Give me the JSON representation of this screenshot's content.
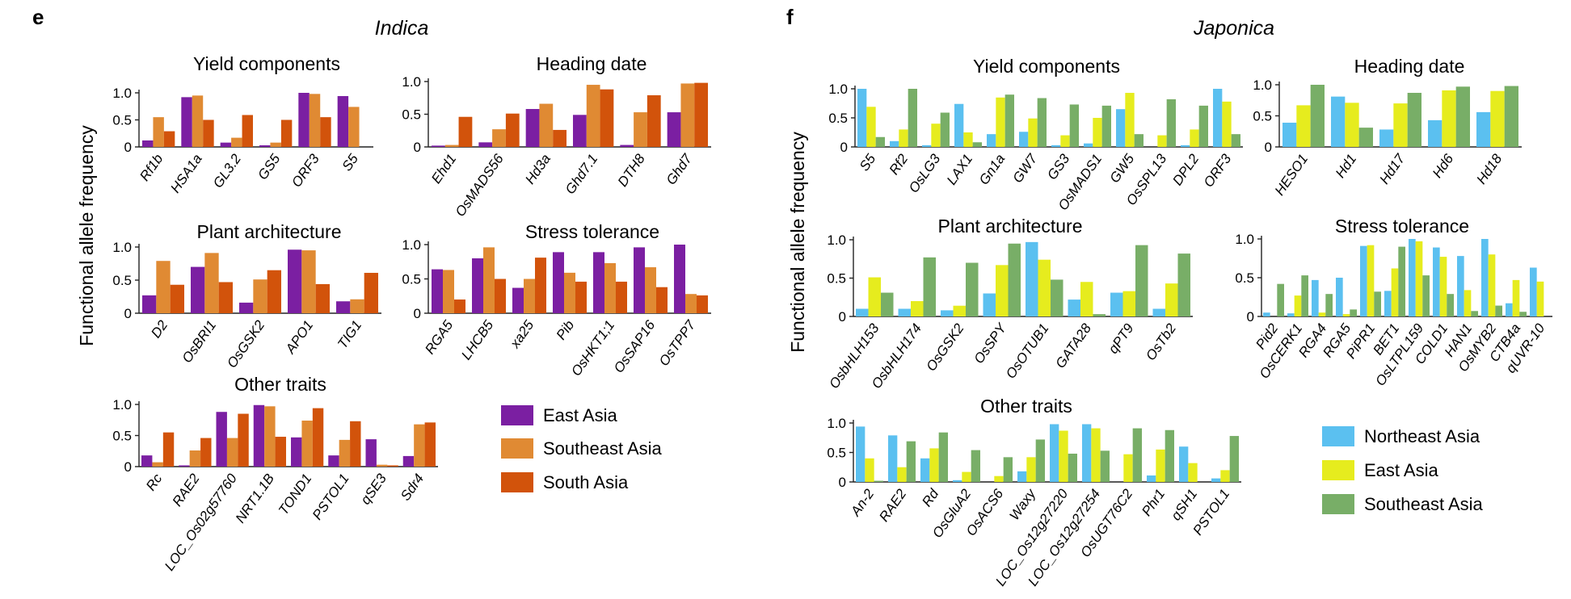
{
  "panels": [
    {
      "label": "e",
      "title": "Indica",
      "ylabel": "Functional allele frequency",
      "legend": [
        {
          "name": "East Asia",
          "color": "#7B1FA2"
        },
        {
          "name": "Southeast Asia",
          "color": "#E08A33"
        },
        {
          "name": "South Asia",
          "color": "#D2530B"
        }
      ]
    },
    {
      "label": "f",
      "title": "Japonica",
      "ylabel": "Functional allele frequency",
      "legend": [
        {
          "name": "Northeast Asia",
          "color": "#5BC0F0"
        },
        {
          "name": "East Asia",
          "color": "#E6EC1E"
        },
        {
          "name": "Southeast Asia",
          "color": "#78AE67"
        }
      ]
    }
  ],
  "chart_data": [
    {
      "panel": "e",
      "type": "bar",
      "title": "Yield components",
      "ylim": [
        0,
        1.0
      ],
      "yticks": [
        "0",
        "0.5",
        "1.0"
      ],
      "categories": [
        "Rf1b",
        "HSA1a",
        "GL3.2",
        "GS5",
        "ORF3",
        "S5"
      ],
      "series": [
        {
          "name": "East Asia",
          "values": [
            0.12,
            0.92,
            0.08,
            0.03,
            1.0,
            0.94
          ]
        },
        {
          "name": "Southeast Asia",
          "values": [
            0.55,
            0.95,
            0.17,
            0.08,
            0.98,
            0.74
          ]
        },
        {
          "name": "South Asia",
          "values": [
            0.29,
            0.5,
            0.59,
            0.5,
            0.55,
            0.0
          ]
        }
      ]
    },
    {
      "panel": "e",
      "type": "bar",
      "title": "Heading date",
      "ylim": [
        0,
        1.0
      ],
      "yticks": [
        "0",
        "0.5",
        "1.0"
      ],
      "categories": [
        "Ehd1",
        "OsMADS56",
        "Hd3a",
        "Ghd7.1",
        "DTH8",
        "Ghd7"
      ],
      "series": [
        {
          "name": "East Asia",
          "values": [
            0.02,
            0.07,
            0.58,
            0.49,
            0.03,
            0.53
          ]
        },
        {
          "name": "Southeast Asia",
          "values": [
            0.03,
            0.27,
            0.66,
            0.95,
            0.53,
            0.97
          ]
        },
        {
          "name": "South Asia",
          "values": [
            0.46,
            0.51,
            0.26,
            0.88,
            0.79,
            0.98
          ]
        }
      ]
    },
    {
      "panel": "e",
      "type": "bar",
      "title": "Plant architecture",
      "ylim": [
        0,
        1.0
      ],
      "yticks": [
        "0",
        "0.5",
        "1.0"
      ],
      "categories": [
        "D2",
        "OsBRI1",
        "OsGSK2",
        "APO1",
        "TIG1"
      ],
      "series": [
        {
          "name": "East Asia",
          "values": [
            0.27,
            0.7,
            0.16,
            0.96,
            0.18
          ]
        },
        {
          "name": "Southeast Asia",
          "values": [
            0.79,
            0.91,
            0.51,
            0.95,
            0.21
          ]
        },
        {
          "name": "South Asia",
          "values": [
            0.43,
            0.47,
            0.65,
            0.44,
            0.61
          ]
        }
      ]
    },
    {
      "panel": "e",
      "type": "bar",
      "title": "Stress tolerance",
      "ylim": [
        0,
        1.0
      ],
      "yticks": [
        "0",
        "0.5",
        "1.0"
      ],
      "categories": [
        "RGA5",
        "LHCB5",
        "xa25",
        "Pib",
        "OsHKT1;1",
        "OsSAP16",
        "OsTPP7"
      ],
      "series": [
        {
          "name": "East Asia",
          "values": [
            0.64,
            0.8,
            0.37,
            0.89,
            0.89,
            0.96,
            1.0
          ]
        },
        {
          "name": "Southeast Asia",
          "values": [
            0.63,
            0.96,
            0.5,
            0.59,
            0.73,
            0.67,
            0.28
          ]
        },
        {
          "name": "South Asia",
          "values": [
            0.2,
            0.5,
            0.81,
            0.46,
            0.46,
            0.38,
            0.26
          ]
        }
      ]
    },
    {
      "panel": "e",
      "type": "bar",
      "title": "Other traits",
      "ylim": [
        0,
        1.0
      ],
      "yticks": [
        "0",
        "0.5",
        "1.0"
      ],
      "categories": [
        "Rc",
        "RAE2",
        "LOC_Os02g57760",
        "NRT1.1B",
        "TOND1",
        "PSTOL1",
        "qSE3",
        "Sdr4"
      ],
      "series": [
        {
          "name": "East Asia",
          "values": [
            0.18,
            0.02,
            0.88,
            0.99,
            0.47,
            0.18,
            0.44,
            0.17
          ]
        },
        {
          "name": "Southeast Asia",
          "values": [
            0.07,
            0.26,
            0.46,
            0.97,
            0.74,
            0.43,
            0.03,
            0.68
          ]
        },
        {
          "name": "South Asia",
          "values": [
            0.55,
            0.46,
            0.85,
            0.48,
            0.94,
            0.73,
            0.02,
            0.71
          ]
        }
      ]
    },
    {
      "panel": "f",
      "type": "bar",
      "title": "Yield components",
      "ylim": [
        0,
        1.0
      ],
      "yticks": [
        "0",
        "0.5",
        "1.0"
      ],
      "categories": [
        "S5",
        "Rf2",
        "OsLG3",
        "LAX1",
        "Gn1a",
        "GW7",
        "GS3",
        "OsMADS1",
        "GW5",
        "OsSPL13",
        "DPL2",
        "ORF3"
      ],
      "series": [
        {
          "name": "Northeast Asia",
          "values": [
            1.0,
            0.1,
            0.03,
            0.74,
            0.22,
            0.26,
            0.03,
            0.06,
            0.65,
            0.0,
            0.03,
            1.0
          ]
        },
        {
          "name": "East Asia",
          "values": [
            0.69,
            0.3,
            0.4,
            0.25,
            0.85,
            0.49,
            0.2,
            0.5,
            0.93,
            0.2,
            0.3,
            0.78
          ]
        },
        {
          "name": "Southeast Asia",
          "values": [
            0.17,
            1.0,
            0.59,
            0.08,
            0.9,
            0.84,
            0.73,
            0.71,
            0.22,
            0.82,
            0.71,
            0.22
          ]
        }
      ]
    },
    {
      "panel": "f",
      "type": "bar",
      "title": "Heading date",
      "ylim": [
        0,
        1.0
      ],
      "yticks": [
        "0",
        "0.5",
        "1.0"
      ],
      "categories": [
        "HESO1",
        "Hd1",
        "Hd17",
        "Hd6",
        "Hd18"
      ],
      "series": [
        {
          "name": "Northeast Asia",
          "values": [
            0.39,
            0.81,
            0.28,
            0.43,
            0.56
          ]
        },
        {
          "name": "East Asia",
          "values": [
            0.67,
            0.71,
            0.7,
            0.91,
            0.9
          ]
        },
        {
          "name": "Southeast Asia",
          "values": [
            1.0,
            0.31,
            0.87,
            0.97,
            0.98
          ]
        }
      ]
    },
    {
      "panel": "f",
      "type": "bar",
      "title": "Plant architecture",
      "ylim": [
        0,
        1.0
      ],
      "yticks": [
        "0",
        "0.5",
        "1.0"
      ],
      "categories": [
        "OsbHLH153",
        "OsbHLH174",
        "OsGSK2",
        "OsSPY",
        "OsOTUB1",
        "GATA28",
        "qPT9",
        "OsTb2"
      ],
      "series": [
        {
          "name": "Northeast Asia",
          "values": [
            0.1,
            0.1,
            0.08,
            0.3,
            0.97,
            0.22,
            0.31,
            0.1
          ]
        },
        {
          "name": "East Asia",
          "values": [
            0.51,
            0.2,
            0.14,
            0.67,
            0.74,
            0.45,
            0.33,
            0.43
          ]
        },
        {
          "name": "Southeast Asia",
          "values": [
            0.31,
            0.77,
            0.7,
            0.95,
            0.48,
            0.03,
            0.93,
            0.82
          ]
        }
      ]
    },
    {
      "panel": "f",
      "type": "bar",
      "title": "Stress tolerance",
      "ylim": [
        0,
        1.0
      ],
      "yticks": [
        "0",
        "0.5",
        "1.0"
      ],
      "categories": [
        "Pid2",
        "OsCERK1",
        "RGA4",
        "RGA5",
        "PiPR1",
        "BET1",
        "OsLTPL159",
        "COLD1",
        "HAN1",
        "OsMYB2",
        "CTB4a",
        "qUVR-10"
      ],
      "series": [
        {
          "name": "Northeast Asia",
          "values": [
            0.05,
            0.04,
            0.47,
            0.5,
            0.91,
            0.33,
            1.0,
            0.89,
            0.78,
            1.0,
            0.17,
            0.63
          ]
        },
        {
          "name": "East Asia",
          "values": [
            0.0,
            0.27,
            0.05,
            0.03,
            0.92,
            0.62,
            0.97,
            0.77,
            0.34,
            0.8,
            0.47,
            0.45
          ]
        },
        {
          "name": "Southeast Asia",
          "values": [
            0.42,
            0.53,
            0.29,
            0.09,
            0.32,
            0.9,
            0.53,
            0.29,
            0.07,
            0.14,
            0.06,
            0.0
          ]
        }
      ]
    },
    {
      "panel": "f",
      "type": "bar",
      "title": "Other traits",
      "ylim": [
        0,
        1.0
      ],
      "yticks": [
        "0",
        "0.5",
        "1.0"
      ],
      "categories": [
        "An-2",
        "RAE2",
        "Rd",
        "OsGluA2",
        "OsACS6",
        "Waxy",
        "LOC_Os12g27220",
        "LOC_Os12g27254",
        "OsUGT76C2",
        "Phr1",
        "qSH1",
        "PSTOL1"
      ],
      "series": [
        {
          "name": "Northeast Asia",
          "values": [
            0.94,
            0.79,
            0.4,
            0.03,
            0.0,
            0.18,
            0.98,
            0.98,
            0.0,
            0.11,
            0.6,
            0.06
          ]
        },
        {
          "name": "East Asia",
          "values": [
            0.4,
            0.25,
            0.57,
            0.17,
            0.1,
            0.42,
            0.87,
            0.91,
            0.47,
            0.55,
            0.32,
            0.2
          ]
        },
        {
          "name": "Southeast Asia",
          "values": [
            0.02,
            0.69,
            0.84,
            0.54,
            0.42,
            0.72,
            0.48,
            0.53,
            0.91,
            0.88,
            0.0,
            0.78
          ]
        }
      ]
    }
  ]
}
